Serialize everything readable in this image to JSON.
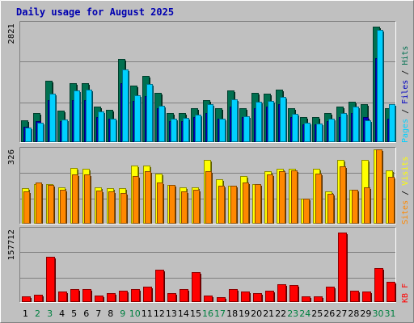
{
  "chart_data": {
    "type": "bar",
    "title": "Daily usage for August 2025",
    "x": [
      "1",
      "2",
      "3",
      "4",
      "5",
      "6",
      "7",
      "8",
      "9",
      "10",
      "11",
      "12",
      "13",
      "14",
      "15",
      "16",
      "17",
      "18",
      "19",
      "20",
      "21",
      "22",
      "23",
      "24",
      "25",
      "26",
      "27",
      "28",
      "29",
      "30",
      "31"
    ],
    "weekend_days": [
      2,
      3,
      9,
      10,
      16,
      17,
      23,
      24,
      30,
      31
    ],
    "colors": {
      "hits": "#007050",
      "files": "#0000c0",
      "pages": "#00d0ff",
      "visits": "#ffff00",
      "sites": "#ff8800",
      "kbytes": "#ff0000",
      "panel_bg": "#c0c0c0",
      "frame": "#9a9a9a",
      "title": "#0000b0",
      "weekday_label": "#000000",
      "weekend_label": "#008040"
    },
    "panels": [
      {
        "name": "hits-files-pages",
        "ymax_label": "2821",
        "ymax": 2821,
        "legend": [
          "Pages",
          "Files",
          "Hits"
        ],
        "legend_separator": " / ",
        "series": [
          {
            "key": "hits",
            "values": [
              520,
              700,
              1450,
              750,
              1400,
              1400,
              850,
              770,
              1980,
              1350,
              1570,
              1170,
              700,
              700,
              800,
              1000,
              800,
              1220,
              800,
              1170,
              1150,
              1250,
              800,
              600,
              600,
              700,
              850,
              950,
              900,
              2750,
              800
            ]
          },
          {
            "key": "files",
            "values": [
              360,
              500,
              1000,
              500,
              1000,
              1000,
              600,
              550,
              1400,
              980,
              1100,
              800,
              500,
              500,
              600,
              700,
              550,
              850,
              600,
              800,
              850,
              900,
              600,
              430,
              430,
              500,
              600,
              700,
              600,
              2000,
              550
            ]
          },
          {
            "key": "pages",
            "values": [
              340,
              460,
              1150,
              540,
              1230,
              1240,
              720,
              560,
              1730,
              1110,
              1380,
              860,
              560,
              570,
              660,
              900,
              560,
              1010,
              610,
              960,
              980,
              1080,
              680,
              460,
              450,
              560,
              690,
              840,
              520,
              2670,
              910
            ]
          }
        ]
      },
      {
        "name": "visits-sites",
        "ymax_label": "326",
        "ymax": 326,
        "legend": [
          "Sites",
          "Visits"
        ],
        "legend_separator": " / ",
        "series": [
          {
            "key": "visits",
            "values": [
              155,
              175,
              175,
              160,
              245,
              240,
              160,
              155,
              155,
              255,
              255,
              220,
              170,
              160,
              160,
              280,
              195,
              165,
              210,
              175,
              230,
              240,
              240,
              110,
              240,
              140,
              280,
              150,
              280,
              325,
              235
            ]
          },
          {
            "key": "sites",
            "values": [
              140,
              180,
              170,
              150,
              215,
              215,
              145,
              140,
              135,
              210,
              230,
              180,
              170,
              140,
              150,
              230,
              165,
              165,
              180,
              175,
              215,
              230,
              235,
              110,
              220,
              130,
              250,
              150,
              160,
              325,
              205
            ]
          }
        ]
      },
      {
        "name": "kbytes",
        "ymax_label": "157712",
        "ymax": 157712,
        "legend": [
          "KB",
          "F"
        ],
        "legend_separator": " ",
        "series": [
          {
            "key": "kbytes",
            "values": [
              12000,
              16000,
              98000,
              23000,
              28000,
              28000,
              14000,
              20000,
              25000,
              28000,
              34000,
              70000,
              20000,
              28000,
              64000,
              14000,
              10000,
              28000,
              22000,
              20000,
              24000,
              38000,
              36000,
              12000,
              12000,
              34000,
              150000,
              24000,
              22000,
              74000,
              44000
            ]
          }
        ]
      }
    ]
  }
}
